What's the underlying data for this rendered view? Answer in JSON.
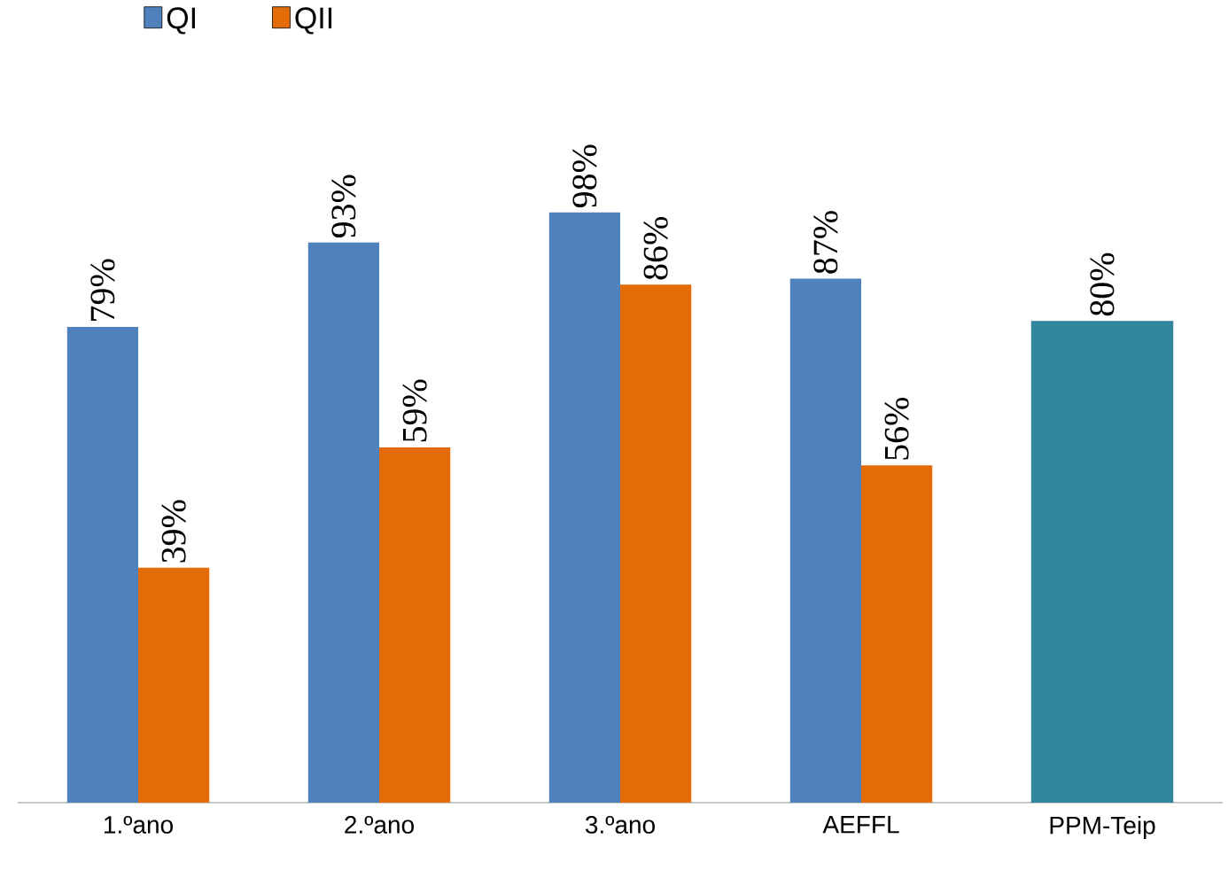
{
  "chart_data": {
    "type": "bar",
    "categories": [
      "1.ºano",
      "2.ºano",
      "3.ºano",
      "AEFFL",
      "PPM-Teip"
    ],
    "series": [
      {
        "name": "QI",
        "color": "#4f81bd",
        "values": [
          79,
          93,
          98,
          87,
          null
        ],
        "value_labels": [
          "79%",
          "93%",
          "98%",
          "87%",
          null
        ]
      },
      {
        "name": "QII",
        "color": "#e36c09",
        "values": [
          39,
          59,
          86,
          56,
          null
        ],
        "value_labels": [
          "39%",
          "59%",
          "86%",
          "56%",
          null
        ]
      },
      {
        "color": "#31859c",
        "values": [
          null,
          null,
          null,
          null,
          80
        ],
        "value_labels": [
          null,
          null,
          null,
          null,
          "80%"
        ]
      }
    ],
    "legend": "top left"
  }
}
